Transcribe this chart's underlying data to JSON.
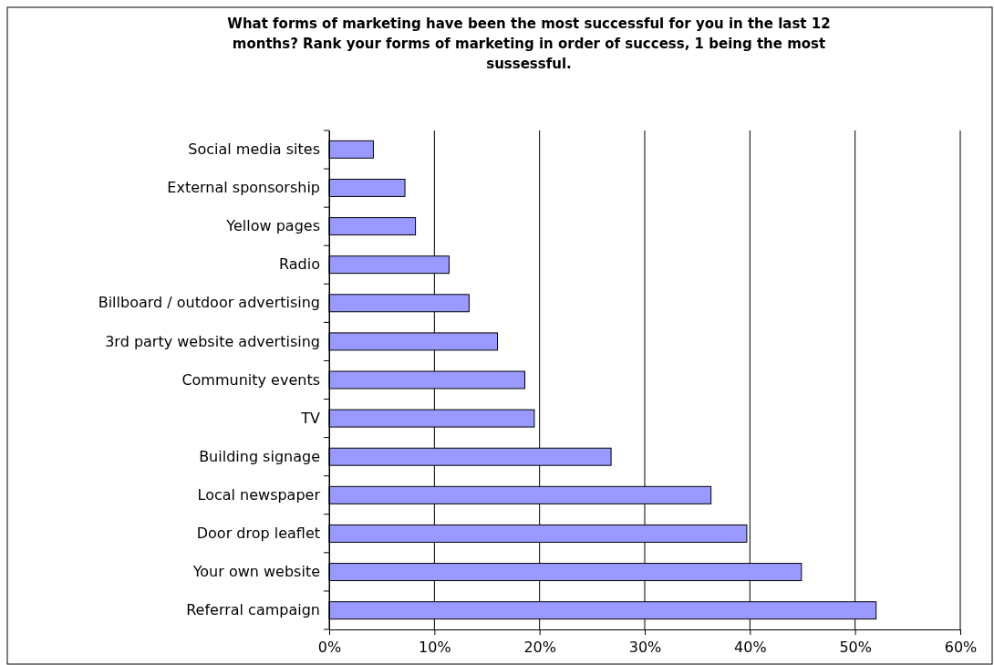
{
  "chart_data": {
    "type": "bar",
    "orientation": "horizontal",
    "title": "What forms of marketing have been the most successful for you in the last 12 months? Rank your forms of marketing in order of success, 1 being the most sussessful.",
    "categories": [
      "Social media sites",
      "External sponsorship",
      "Yellow pages",
      "Radio",
      "Billboard / outdoor advertising",
      "3rd party website advertising",
      "Community events",
      "TV",
      "Building signage",
      "Local newspaper",
      "Door drop leaflet",
      "Your own website",
      "Referral campaign"
    ],
    "values": [
      4.2,
      7.2,
      8.2,
      11.4,
      13.3,
      16.0,
      18.6,
      19.5,
      26.8,
      36.3,
      39.7,
      44.9,
      52.0
    ],
    "color": "#9999ff",
    "xlim": [
      0,
      60
    ],
    "xticks": [
      {
        "value": 0,
        "label": "0%"
      },
      {
        "value": 10,
        "label": "10%"
      },
      {
        "value": 20,
        "label": "20%"
      },
      {
        "value": 30,
        "label": "30%"
      },
      {
        "value": 40,
        "label": "40%"
      },
      {
        "value": 50,
        "label": "50%"
      },
      {
        "value": 60,
        "label": "60%"
      }
    ],
    "grid": "x"
  }
}
